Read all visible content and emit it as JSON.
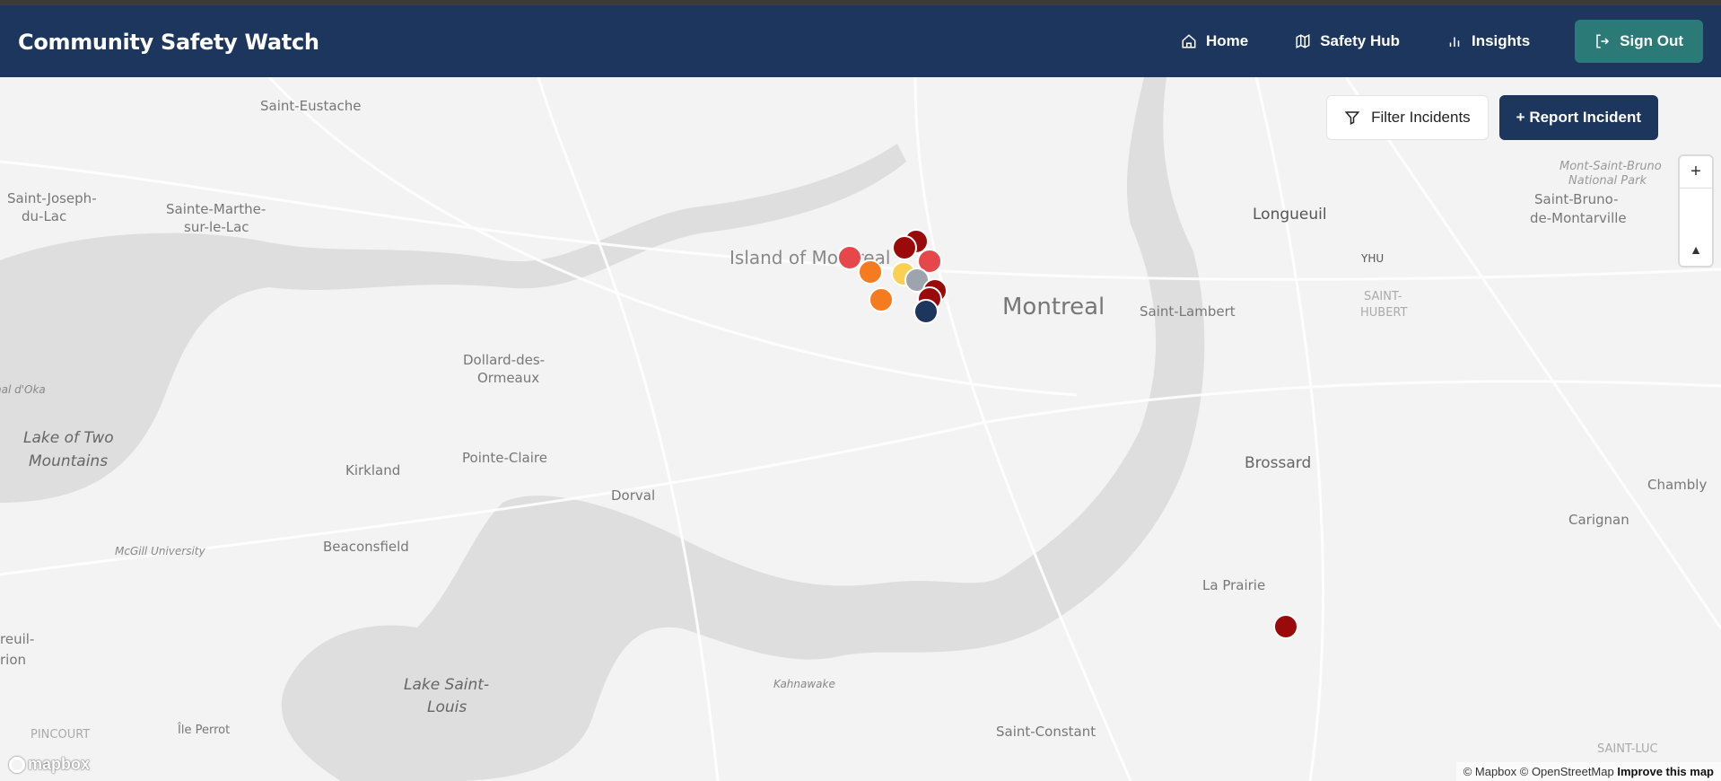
{
  "header": {
    "title": "Community Safety Watch",
    "nav": [
      {
        "label": "Home",
        "icon": "home-icon"
      },
      {
        "label": "Safety Hub",
        "icon": "map-icon"
      },
      {
        "label": "Insights",
        "icon": "bar-chart-icon"
      }
    ],
    "sign_out": "Sign Out"
  },
  "map_actions": {
    "filter": "Filter Incidents",
    "report": "+ Report Incident"
  },
  "map_controls": {
    "zoom_in": "+",
    "compass": "▲"
  },
  "map_labels": {
    "saint_eustache": "Saint-Eustache",
    "saint_joseph_1": "Saint-Joseph-",
    "saint_joseph_2": "du-Lac",
    "sainte_marthe_1": "Sainte-Marthe-",
    "sainte_marthe_2": "sur-le-Lac",
    "island": "Island of Montreal",
    "montreal": "Montreal",
    "longueuil": "Longueuil",
    "yhu": "YHU",
    "saint_hubert_1": "SAINT-",
    "saint_hubert_2": "HUBERT",
    "saint_lambert": "Saint-Lambert",
    "msb_1": "Mont-Saint-Bruno",
    "msb_2": "National Park",
    "sbm_1": "Saint-Bruno-",
    "sbm_2": "de-Montarville",
    "ddo_1": "Dollard-des-",
    "ddo_2": "Ormeaux",
    "l2m_1": "Lake of Two",
    "l2m_2": "Mountains",
    "pointe_claire": "Pointe-Claire",
    "kirkland": "Kirkland",
    "dorval": "Dorval",
    "brossard": "Brossard",
    "chambly": "Chambly",
    "carignan": "Carignan",
    "mcgill": "McGill University",
    "beaconsfield": "Beaconsfield",
    "la_prairie": "La Prairie",
    "kahnawake": "Kahnawake",
    "lsl_1": "Lake Saint-",
    "lsl_2": "Louis",
    "saint_constant": "Saint-Constant",
    "ile_perrot": "Île Perrot",
    "pincourt": "PINCOURT",
    "oka": "nal d'Oka",
    "vaudreuil_1": "reuil-",
    "vaudreuil_2": "rion",
    "saint_luc": "SAINT-LUC"
  },
  "incidents": [
    {
      "color": "#e5474b"
    },
    {
      "color": "#f47b20"
    },
    {
      "color": "#9b0a0a"
    },
    {
      "color": "#9b0a0a"
    },
    {
      "color": "#e5474b"
    },
    {
      "color": "#fbd052"
    },
    {
      "color": "#9ea4ae"
    },
    {
      "color": "#9b0a0a"
    },
    {
      "color": "#9b0a0a"
    },
    {
      "color": "#1c365d"
    },
    {
      "color": "#f47b20"
    },
    {
      "color": "#9b0a0a"
    }
  ],
  "logo": "mapbox",
  "attribution": {
    "text": "© Mapbox © OpenStreetMap",
    "improve": "Improve this map"
  }
}
